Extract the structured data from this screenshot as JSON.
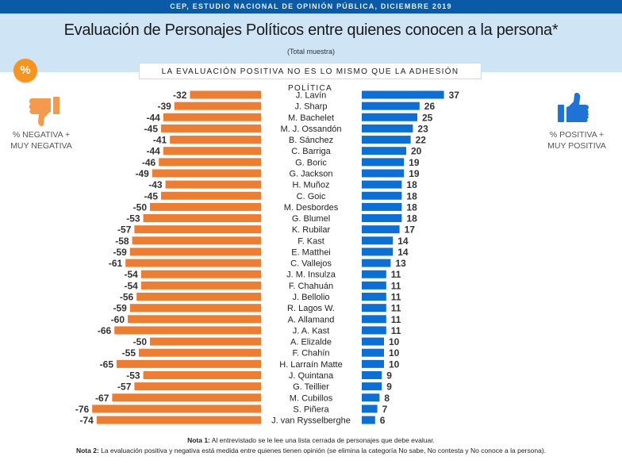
{
  "header": {
    "source_bar": "CEP, ESTUDIO NACIONAL DE OPINIÓN PÚBLICA, DICIEMBRE 2019",
    "title": "Evaluación de Personajes Políticos entre quienes conocen a la persona*",
    "subtitle": "(Total muestra)",
    "notice": "LA EVALUACIÓN POSITIVA NO ES LO MISMO QUE LA ADHESIÓN POLÍTICA",
    "badge": "%"
  },
  "legend": {
    "negative": {
      "icon": "thumbs-down-icon",
      "line1": "% NEGATIVA +",
      "line2": "MUY NEGATIVA",
      "color": "#ed7d31"
    },
    "positive": {
      "icon": "thumbs-up-icon",
      "line1": "% POSITIVA +",
      "line2": "MUY POSITIVA",
      "color": "#0b6fd6"
    }
  },
  "colors": {
    "topbar": "#0a5aa8",
    "band": "#cfe4f5",
    "badge": "#f7941d",
    "negative_icon": "#f59a4a",
    "positive_icon": "#1f73d6"
  },
  "chart_data": {
    "type": "bar",
    "orientation": "horizontal-diverging",
    "title": "Evaluación de Personajes Políticos entre quienes conocen a la persona*",
    "subtitle": "(Total muestra)",
    "xlabel": "",
    "ylabel": "",
    "units": "%",
    "grid": false,
    "legend": "sides",
    "categories": [
      "J. Lavín",
      "J. Sharp",
      "M. Bachelet",
      "M. J. Ossandón",
      "B. Sánchez",
      "C. Barriga",
      "G. Boric",
      "G. Jackson",
      "H. Muñoz",
      "C. Goic",
      "M. Desbordes",
      "G. Blumel",
      "K. Rubilar",
      "F. Kast",
      "E. Matthei",
      "C. Vallejos",
      "J. M. Insulza",
      "F. Chahuán",
      "J. Bellolio",
      "R. Lagos W.",
      "A. Allamand",
      "J. A. Kast",
      "A. Elizalde",
      "F. Chahín",
      "H. Larraín Matte",
      "J. Quintana",
      "G. Teillier",
      "M. Cubillos",
      "S. Piñera",
      "J. van Rysselberghe"
    ],
    "series": [
      {
        "name": "% Negativa + Muy negativa",
        "color": "#ed7d31",
        "values": [
          -32,
          -39,
          -44,
          -45,
          -41,
          -44,
          -46,
          -49,
          -43,
          -45,
          -50,
          -53,
          -57,
          -58,
          -59,
          -61,
          -54,
          -54,
          -56,
          -59,
          -60,
          -66,
          -50,
          -55,
          -65,
          -53,
          -57,
          -67,
          -76,
          -74
        ]
      },
      {
        "name": "% Positiva + Muy positiva",
        "color": "#0b6fd6",
        "values": [
          37,
          26,
          25,
          23,
          22,
          20,
          19,
          19,
          18,
          18,
          18,
          18,
          17,
          14,
          14,
          13,
          11,
          11,
          11,
          11,
          11,
          11,
          10,
          10,
          10,
          9,
          9,
          8,
          7,
          6
        ]
      }
    ]
  },
  "notes": {
    "note1_label": "Nota 1:",
    "note1_text": " Al entrevistado se le lee una lista cerrada de personajes que debe evaluar.",
    "note2_label": "Nota 2:",
    "note2_text": " La evaluación positiva y negativa está medida entre quienes tienen opinión (se elimina la categoría No sabe, No contesta y No conoce a la persona)."
  }
}
